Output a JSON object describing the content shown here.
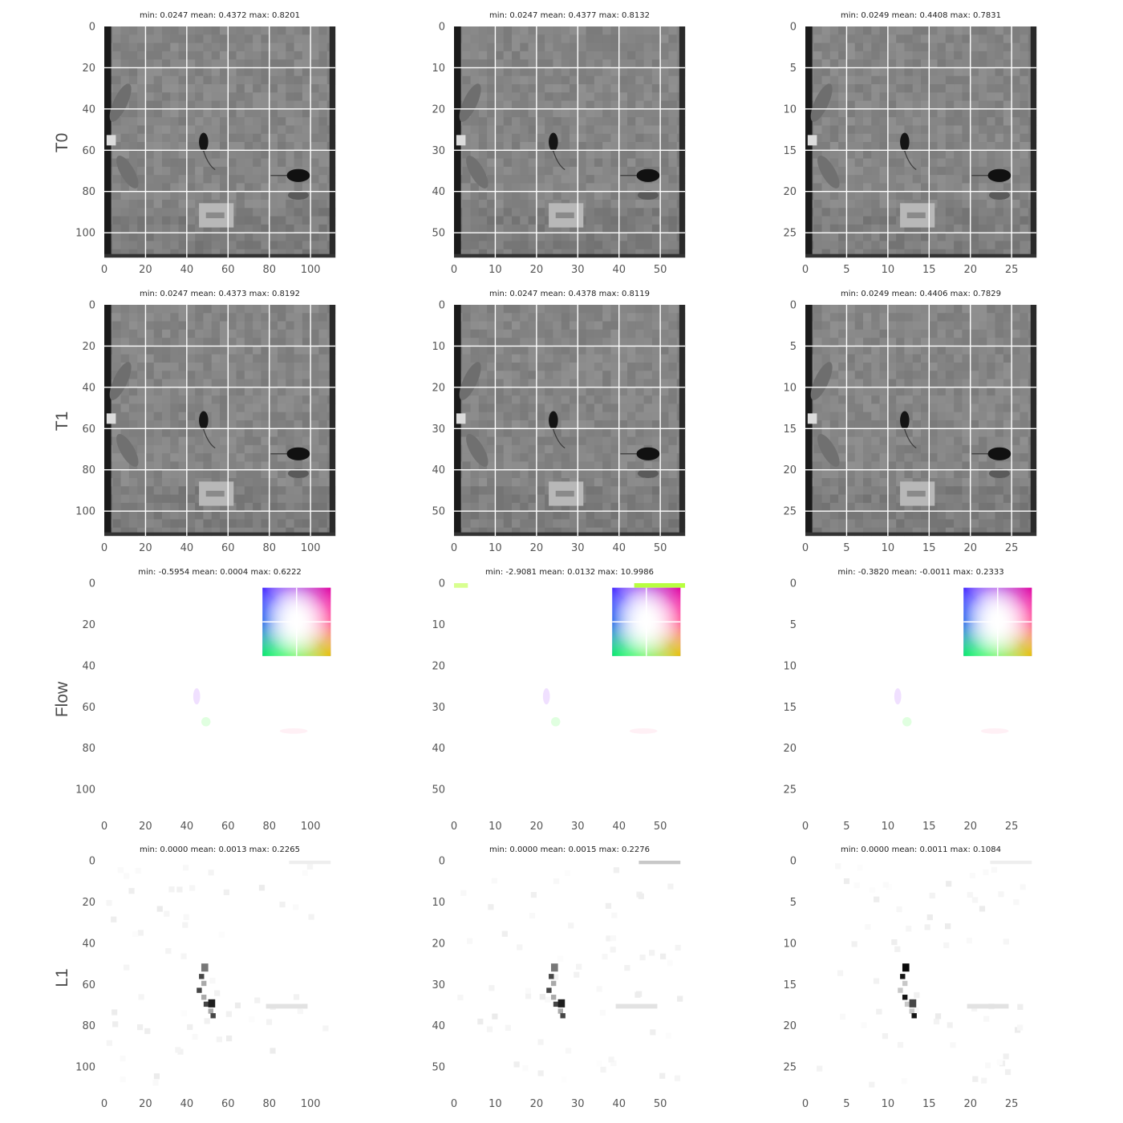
{
  "figure": {
    "row_labels": [
      "T0",
      "T1",
      "Flow",
      "L1"
    ]
  },
  "chart_data": [
    {
      "type": "heatmap",
      "row": "T0",
      "col": 0,
      "title": "min: 0.0247 mean: 0.4372 max: 0.8201",
      "xlim": [
        0,
        112
      ],
      "ylim": [
        112,
        0
      ],
      "xticks": [
        0,
        20,
        40,
        60,
        80,
        100
      ],
      "yticks": [
        0,
        20,
        40,
        60,
        80,
        100
      ],
      "grid": true,
      "colormap": "gray",
      "min": 0.0247,
      "mean": 0.4372,
      "max": 0.8201
    },
    {
      "type": "heatmap",
      "row": "T0",
      "col": 1,
      "title": "min: 0.0247 mean: 0.4377 max: 0.8132",
      "xlim": [
        0,
        56
      ],
      "ylim": [
        56,
        0
      ],
      "xticks": [
        0,
        10,
        20,
        30,
        40,
        50
      ],
      "yticks": [
        0,
        10,
        20,
        30,
        40,
        50
      ],
      "grid": true,
      "colormap": "gray",
      "min": 0.0247,
      "mean": 0.4377,
      "max": 0.8132
    },
    {
      "type": "heatmap",
      "row": "T0",
      "col": 2,
      "title": "min: 0.0249 mean: 0.4408 max: 0.7831",
      "xlim": [
        0,
        28
      ],
      "ylim": [
        28,
        0
      ],
      "xticks": [
        0,
        5,
        10,
        15,
        20,
        25
      ],
      "yticks": [
        0,
        5,
        10,
        15,
        20,
        25
      ],
      "grid": true,
      "colormap": "gray",
      "min": 0.0249,
      "mean": 0.4408,
      "max": 0.7831
    },
    {
      "type": "heatmap",
      "row": "T1",
      "col": 0,
      "title": "min: 0.0247 mean: 0.4373 max: 0.8192",
      "xlim": [
        0,
        112
      ],
      "ylim": [
        112,
        0
      ],
      "xticks": [
        0,
        20,
        40,
        60,
        80,
        100
      ],
      "yticks": [
        0,
        20,
        40,
        60,
        80,
        100
      ],
      "grid": true,
      "colormap": "gray",
      "min": 0.0247,
      "mean": 0.4373,
      "max": 0.8192
    },
    {
      "type": "heatmap",
      "row": "T1",
      "col": 1,
      "title": "min: 0.0247 mean: 0.4378 max: 0.8119",
      "xlim": [
        0,
        56
      ],
      "ylim": [
        56,
        0
      ],
      "xticks": [
        0,
        10,
        20,
        30,
        40,
        50
      ],
      "yticks": [
        0,
        10,
        20,
        30,
        40,
        50
      ],
      "grid": true,
      "colormap": "gray",
      "min": 0.0247,
      "mean": 0.4378,
      "max": 0.8119
    },
    {
      "type": "heatmap",
      "row": "T1",
      "col": 2,
      "title": "min: 0.0249 mean: 0.4406 max: 0.7829",
      "xlim": [
        0,
        28
      ],
      "ylim": [
        28,
        0
      ],
      "xticks": [
        0,
        5,
        10,
        15,
        20,
        25
      ],
      "yticks": [
        0,
        5,
        10,
        15,
        20,
        25
      ],
      "grid": true,
      "colormap": "gray",
      "min": 0.0249,
      "mean": 0.4406,
      "max": 0.7829
    },
    {
      "type": "heatmap",
      "row": "Flow",
      "col": 0,
      "title": "min: -0.5954 mean: 0.0004 max: 0.6222",
      "xlim": [
        0,
        112
      ],
      "ylim": [
        112,
        0
      ],
      "xticks": [
        0,
        20,
        40,
        60,
        80,
        100
      ],
      "yticks": [
        0,
        20,
        40,
        60,
        80,
        100
      ],
      "grid": false,
      "colormap": "flow-color-wheel",
      "color_wheel_legend": "top-right",
      "min": -0.5954,
      "mean": 0.0004,
      "max": 0.6222
    },
    {
      "type": "heatmap",
      "row": "Flow",
      "col": 1,
      "title": "min: -2.9081 mean: 0.0132 max: 10.9986",
      "xlim": [
        0,
        56
      ],
      "ylim": [
        56,
        0
      ],
      "xticks": [
        0,
        10,
        20,
        30,
        40,
        50
      ],
      "yticks": [
        0,
        10,
        20,
        30,
        40,
        50
      ],
      "grid": false,
      "colormap": "flow-color-wheel",
      "color_wheel_legend": "top-right",
      "min": -2.9081,
      "mean": 0.0132,
      "max": 10.9986
    },
    {
      "type": "heatmap",
      "row": "Flow",
      "col": 2,
      "title": "min: -0.3820 mean: -0.0011 max: 0.2333",
      "xlim": [
        0,
        28
      ],
      "ylim": [
        28,
        0
      ],
      "xticks": [
        0,
        5,
        10,
        15,
        20,
        25
      ],
      "yticks": [
        0,
        5,
        10,
        15,
        20,
        25
      ],
      "grid": false,
      "colormap": "flow-color-wheel",
      "color_wheel_legend": "top-right",
      "min": -0.382,
      "mean": -0.0011,
      "max": 0.2333
    },
    {
      "type": "heatmap",
      "row": "L1",
      "col": 0,
      "title": "min: 0.0000 mean: 0.0013 max: 0.2265",
      "xlim": [
        0,
        112
      ],
      "ylim": [
        112,
        0
      ],
      "xticks": [
        0,
        20,
        40,
        60,
        80,
        100
      ],
      "yticks": [
        0,
        20,
        40,
        60,
        80,
        100
      ],
      "grid": false,
      "colormap": "gray_r",
      "min": 0.0,
      "mean": 0.0013,
      "max": 0.2265
    },
    {
      "type": "heatmap",
      "row": "L1",
      "col": 1,
      "title": "min: 0.0000 mean: 0.0015 max: 0.2276",
      "xlim": [
        0,
        56
      ],
      "ylim": [
        56,
        0
      ],
      "xticks": [
        0,
        10,
        20,
        30,
        40,
        50
      ],
      "yticks": [
        0,
        10,
        20,
        30,
        40,
        50
      ],
      "grid": false,
      "colormap": "gray_r",
      "min": 0.0,
      "mean": 0.0015,
      "max": 0.2276
    },
    {
      "type": "heatmap",
      "row": "L1",
      "col": 2,
      "title": "min: 0.0000 mean: 0.0011 max: 0.1084",
      "xlim": [
        0,
        28
      ],
      "ylim": [
        28,
        0
      ],
      "xticks": [
        0,
        5,
        10,
        15,
        20,
        25
      ],
      "yticks": [
        0,
        5,
        10,
        15,
        20,
        25
      ],
      "grid": false,
      "colormap": "gray_r",
      "min": 0.0,
      "mean": 0.0011,
      "max": 0.1084
    }
  ]
}
